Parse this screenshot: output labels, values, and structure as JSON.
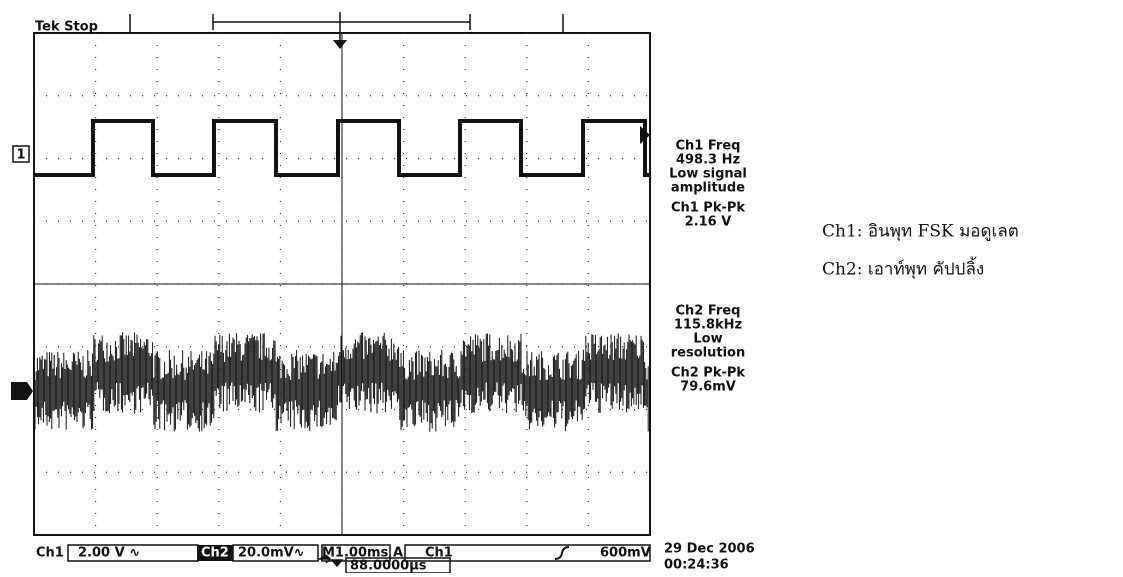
{
  "header": {
    "status": "Tek Stop"
  },
  "markers": {
    "ch1": "1"
  },
  "measurements": {
    "ch1_freq": {
      "label": "Ch1 Freq",
      "value": "498.3 Hz",
      "note": [
        "Low signal",
        "amplitude"
      ]
    },
    "ch1_pkpk": {
      "label": "Ch1 Pk-Pk",
      "value": "2.16 V"
    },
    "ch2_freq": {
      "label": "Ch2 Freq",
      "value": "115.8kHz",
      "note": [
        "Low",
        "resolution"
      ]
    },
    "ch2_pkpk": {
      "label": "Ch2 Pk-Pk",
      "value": "79.6mV"
    }
  },
  "settings": {
    "ch1": "Ch1",
    "ch1_scale": "2.00 V ∿",
    "ch2": "Ch2",
    "ch2_scale": "20.0mV∿",
    "timebase": "M1.00ms",
    "trigger": "A",
    "trigger_source": "Ch1",
    "trigger_level": "600mV",
    "position": "88.0000µs"
  },
  "timestamp": {
    "date": "29 Dec 2006",
    "time": "00:24:36"
  },
  "legend": [
    "Ch1: อินพุท FSK มอดูเลต",
    "Ch2: เอาท์พุท คัปปลิ้ง"
  ]
}
